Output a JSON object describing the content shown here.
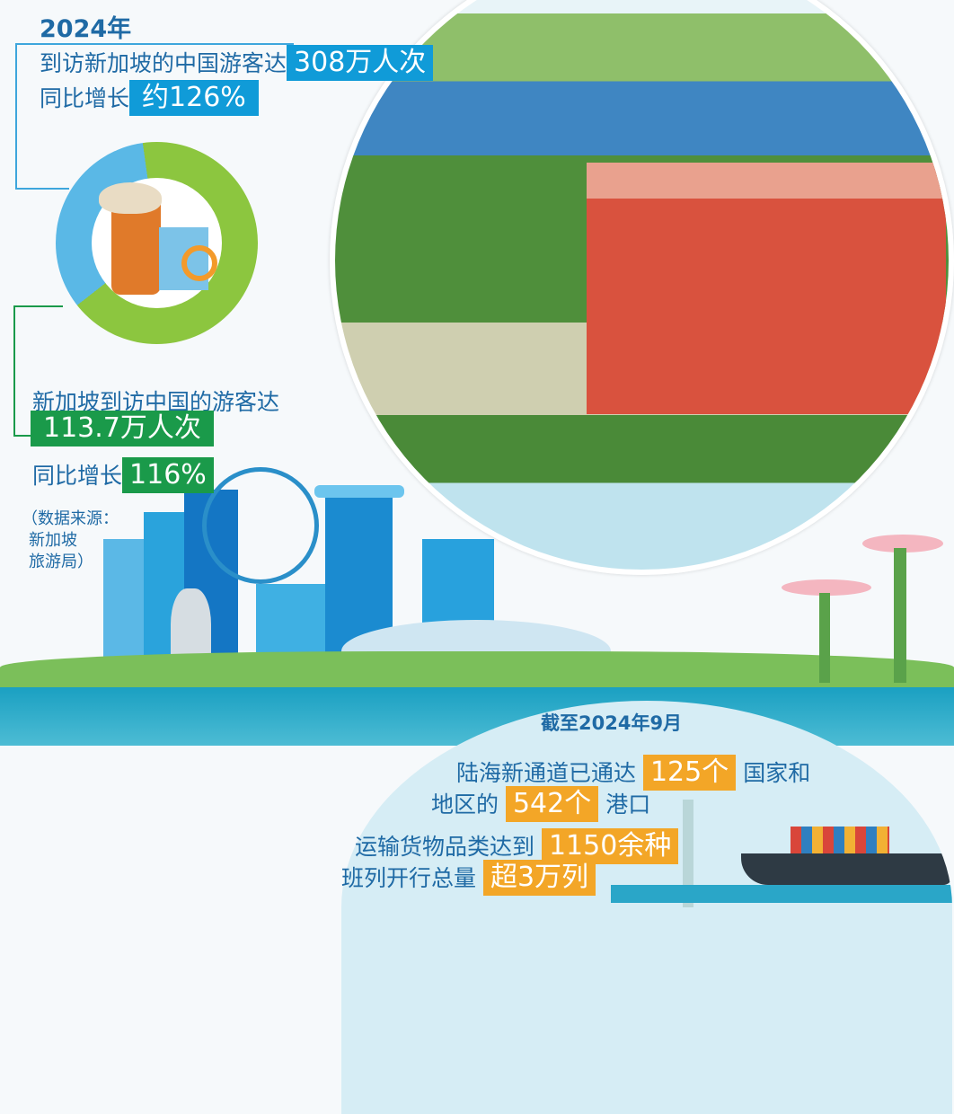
{
  "china_to_sg": {
    "year": "2024年",
    "label": "到访新加坡的中国游客达",
    "value": "308万人次",
    "growth_label": "同比增长",
    "growth": "约126%"
  },
  "sg_to_china": {
    "label": "新加坡到访中国的游客达",
    "value": "113.7万人次",
    "growth_label": "同比增长",
    "growth": "116%"
  },
  "source": {
    "line1": "（数据来源：",
    "line2": "新加坡",
    "line3": "旅游局）"
  },
  "corridor": {
    "date": "截至2024年9月",
    "l1a": "陆海新通道已通达",
    "l1v": "125个",
    "l1b": "国家和",
    "l2a": "地区的",
    "l2v": "542个",
    "l2b": "港口",
    "l3a": "运输货物品类达到",
    "l3v": "1150余种",
    "l4a": "班列开行总量",
    "l4v": "超3万列"
  },
  "colors": {
    "blue": "#109bd8",
    "green": "#1a9a4a",
    "orange": "#f3a627",
    "text": "#1f6aa5"
  },
  "icons": [
    "suitcase-icon",
    "hat-icon",
    "map-icon",
    "magnifier-icon",
    "ferris-wheel-icon",
    "merlion-icon",
    "ship-icon",
    "crane-icon"
  ]
}
